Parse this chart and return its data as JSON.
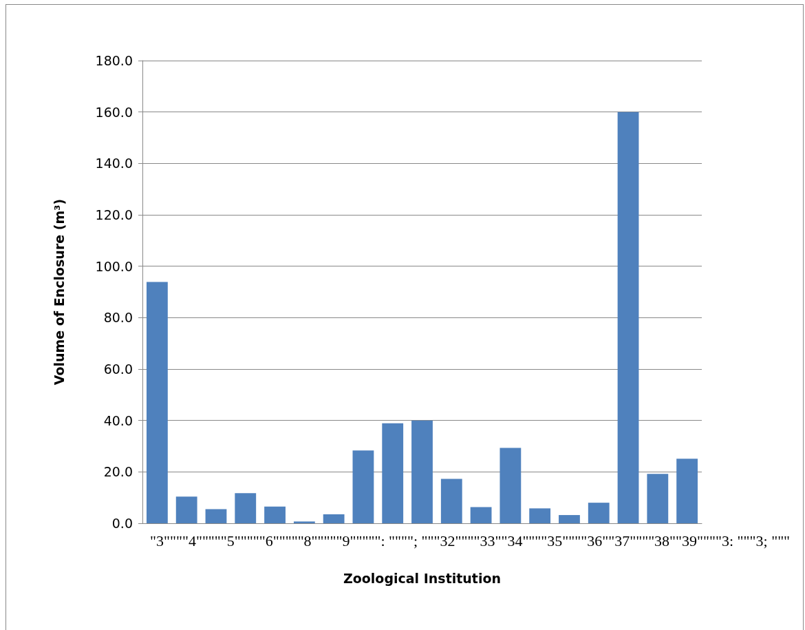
{
  "chart_data": {
    "type": "bar",
    "xlabel": "Zoological Institution",
    "ylabel": "Volume of Enclosure (m³)",
    "categories": [
      null,
      null,
      null,
      null,
      null,
      null,
      null,
      null,
      null,
      null,
      null,
      null,
      null,
      null,
      null,
      null,
      null,
      null,
      null
    ],
    "values": [
      93.9,
      10.4,
      5.5,
      11.7,
      6.5,
      0.7,
      3.5,
      28.3,
      38.9,
      40.0,
      17.3,
      6.3,
      29.3,
      5.8,
      3.2,
      8.0,
      160.0,
      19.2,
      25.1
    ],
    "color": "#4f81bd",
    "ylim": [
      0,
      180
    ],
    "yticks": [
      {
        "value": 0,
        "label": "0.0"
      },
      {
        "value": 20,
        "label": "20.0"
      },
      {
        "value": 40,
        "label": "40.0"
      },
      {
        "value": 60,
        "label": "60.0"
      },
      {
        "value": 80,
        "label": "80.0"
      },
      {
        "value": 100,
        "label": "100.0"
      },
      {
        "value": 120,
        "label": "120.0"
      },
      {
        "value": 140,
        "label": "140.0"
      },
      {
        "value": 160,
        "label": "160.0"
      },
      {
        "value": 180,
        "label": "180.0"
      }
    ],
    "grid": "y",
    "annotations": [
      "\"3\"\"\"\"4\"\"\"\"\"5\"\"\"\"\"6\"\"\"\"\"8\"\"\"\"\"9\"\"\"\"\": \"\"\"\"; \"\"\"32\"\"\"\"33\"\"34\"\"\"\"35\"\"\"\"36\"\"37\"\"\"\"38\"\"39\"\"\"\"3: \"\"\"3; \"\"\""
    ]
  }
}
